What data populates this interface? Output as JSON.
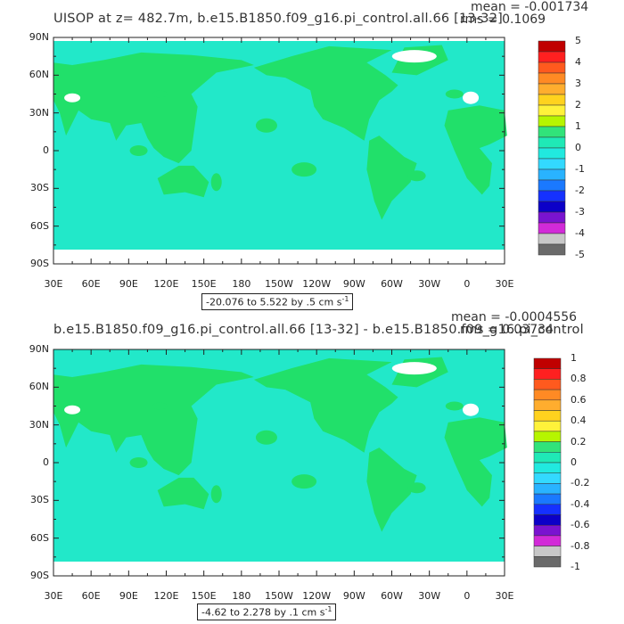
{
  "panels": [
    {
      "title": "UISOP at z= 482.7m, b.e15.B1850.f09_g16.pi_control.all.66 [13-32]",
      "mean_text": "mean = -0.001734",
      "rms_text": "rms = 0.1069",
      "range_text": "-20.076 to 5.522 by .5 cm s",
      "range_sup": "-1",
      "y_ticks": [
        "90N",
        "60N",
        "30N",
        "0",
        "30S",
        "60S",
        "90S"
      ],
      "x_ticks": [
        "30E",
        "60E",
        "90E",
        "120E",
        "150E",
        "180",
        "150W",
        "120W",
        "90W",
        "60W",
        "30W",
        "0",
        "30E"
      ],
      "colorbar_labels": [
        "5",
        "4",
        "3",
        "2",
        "1",
        "0",
        "-1",
        "-2",
        "-3",
        "-4",
        "-5"
      ]
    },
    {
      "title": "b.e15.B1850.f09_g16.pi_control.all.66 [13-32] - b.e15.B1850.f09_g16.pi_control",
      "mean_text": "mean = -0.0004556",
      "rms_text": "rms = 0.03734",
      "range_text": "-4.62 to 2.278 by .1 cm s",
      "range_sup": "-1",
      "y_ticks": [
        "90N",
        "60N",
        "30N",
        "0",
        "30S",
        "60S",
        "90S"
      ],
      "x_ticks": [
        "30E",
        "60E",
        "90E",
        "120E",
        "150E",
        "180",
        "150W",
        "120W",
        "90W",
        "60W",
        "30W",
        "0",
        "30E"
      ],
      "colorbar_labels": [
        "1",
        "0.8",
        "0.6",
        "0.4",
        "0.2",
        "0",
        "-0.2",
        "-0.4",
        "-0.6",
        "-0.8",
        "-1"
      ]
    }
  ],
  "colors": {
    "land": "#21e06a",
    "ocean": "#22e8c9",
    "colorbar": [
      "#c00000",
      "#ff2020",
      "#ff5a1e",
      "#ff8a24",
      "#ffad2e",
      "#ffd21e",
      "#fff23a",
      "#b6f500",
      "#31e37a",
      "#1fe9b6",
      "#21e9df",
      "#33d9ff",
      "#29b3ff",
      "#1a79ff",
      "#1531ff",
      "#0c00c8",
      "#7a13d0",
      "#d22ad8",
      "#c8c8c8",
      "#6a6a6a"
    ]
  }
}
